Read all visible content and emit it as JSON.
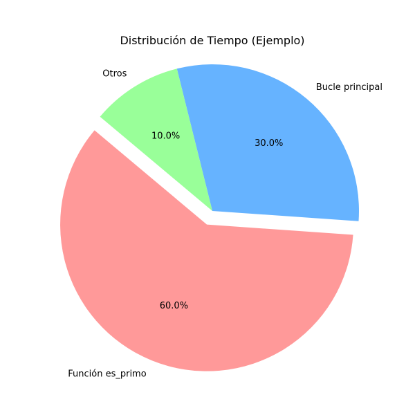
{
  "chart_data": {
    "type": "pie",
    "title": "Distribución de Tiempo (Ejemplo)",
    "start_angle_deg": 140,
    "direction": "counterclockwise",
    "slices": [
      {
        "label": "Función es_primo",
        "value": 60,
        "pct_label": "60.0%",
        "color": "#ff9999",
        "exploded": true
      },
      {
        "label": "Bucle principal",
        "value": 30,
        "pct_label": "30.0%",
        "color": "#66b3ff",
        "exploded": false
      },
      {
        "label": "Otros",
        "value": 10,
        "pct_label": "10.0%",
        "color": "#99ff99",
        "exploded": false
      }
    ]
  }
}
